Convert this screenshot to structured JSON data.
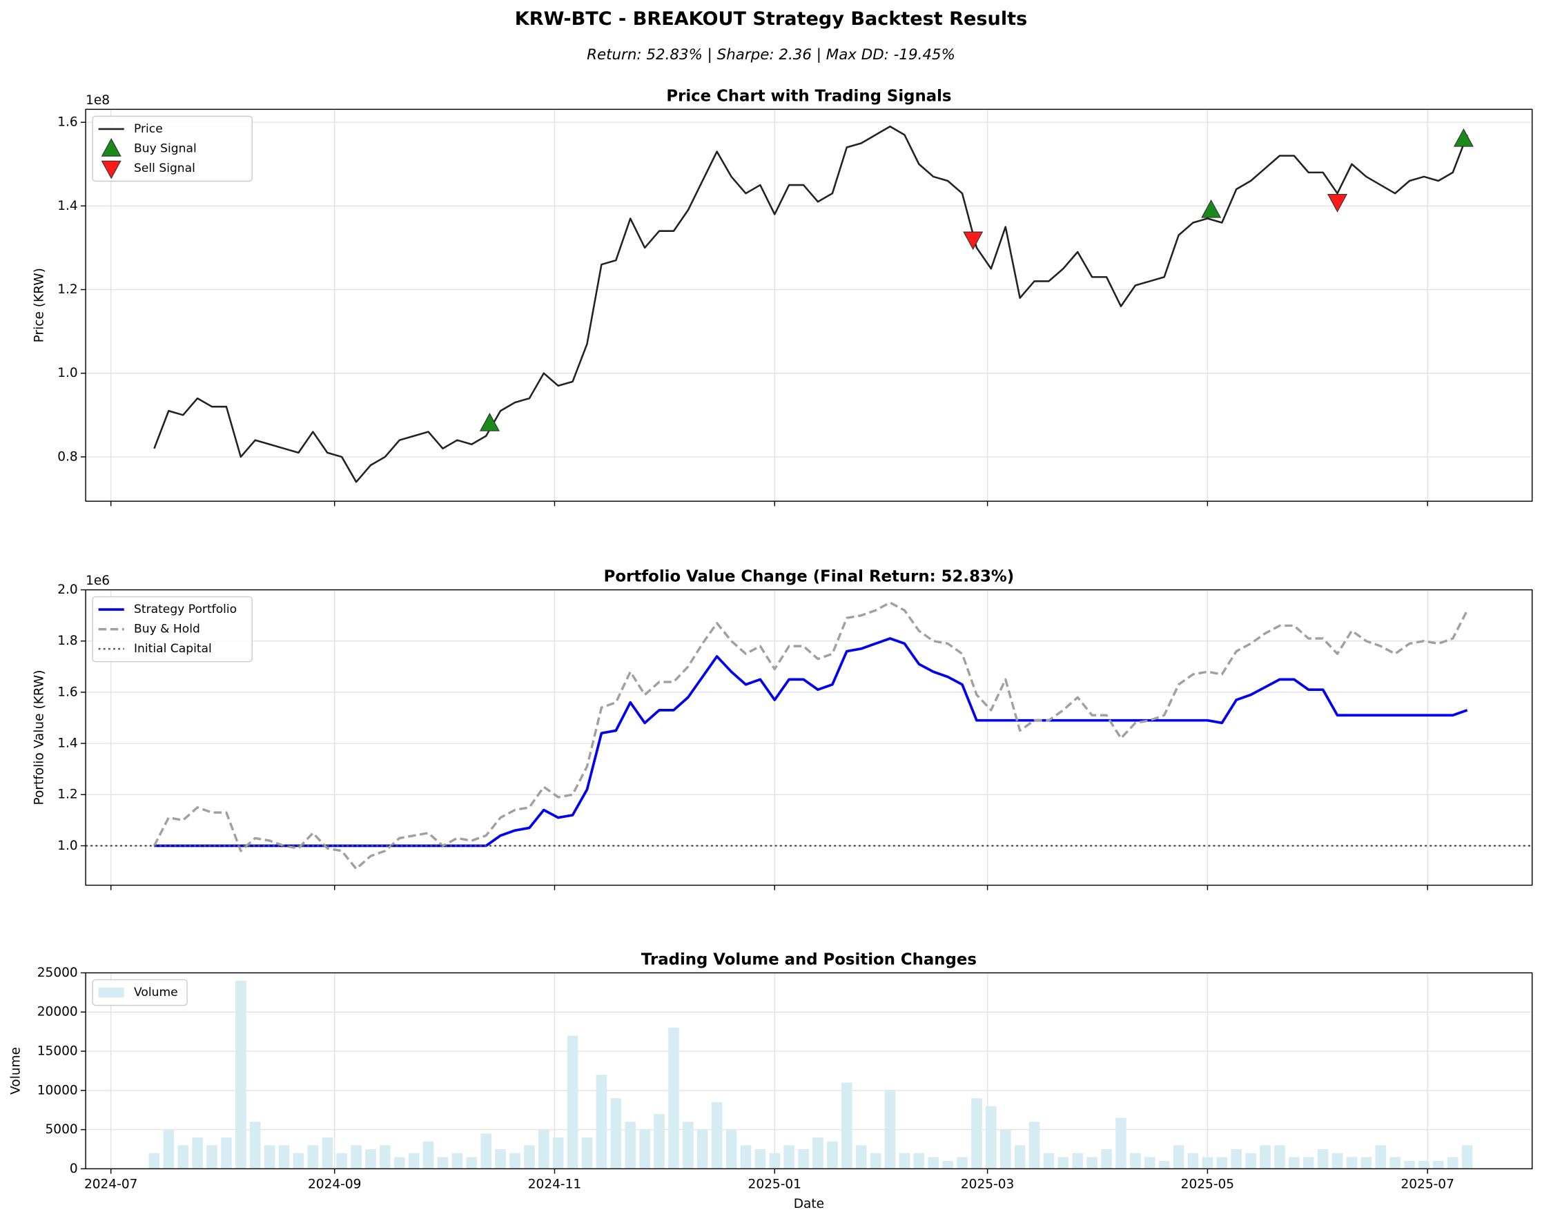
{
  "title": "KRW-BTC - BREAKOUT Strategy Backtest Results",
  "subtitle": "Return: 52.83% | Sharpe: 2.36 | Max DD: -19.45%",
  "chart_data": [
    {
      "type": "line",
      "title": "Price Chart with Trading Signals",
      "y_label": "Price (KRW)",
      "y_offset": "1e8",
      "x": [
        12,
        16,
        20,
        24,
        28,
        32,
        36,
        40,
        44,
        48,
        52,
        56,
        60,
        64,
        68,
        72,
        76,
        80,
        84,
        88,
        92,
        96,
        100,
        104,
        108,
        112,
        116,
        120,
        124,
        128,
        132,
        136,
        140,
        144,
        148,
        152,
        156,
        160,
        164,
        168,
        172,
        176,
        180,
        184,
        188,
        192,
        196,
        200,
        204,
        208,
        212,
        216,
        220,
        224,
        228,
        232,
        236,
        240,
        244,
        248,
        252,
        256,
        260,
        264,
        268,
        272,
        276,
        280,
        284,
        288,
        292,
        296,
        300,
        304,
        308,
        312,
        316,
        320,
        324,
        328,
        332,
        336,
        340,
        344,
        348,
        352,
        356,
        360,
        364,
        368,
        372,
        376
      ],
      "series": [
        {
          "name": "Price",
          "color": "#222222",
          "linestyle": "solid",
          "values": [
            0.82,
            0.91,
            0.9,
            0.94,
            0.92,
            0.92,
            0.8,
            0.84,
            0.83,
            0.82,
            0.81,
            0.86,
            0.81,
            0.8,
            0.74,
            0.78,
            0.8,
            0.84,
            0.85,
            0.86,
            0.82,
            0.84,
            0.83,
            0.85,
            0.91,
            0.93,
            0.94,
            1.0,
            0.97,
            0.98,
            1.07,
            1.26,
            1.27,
            1.37,
            1.3,
            1.34,
            1.34,
            1.39,
            1.46,
            1.53,
            1.47,
            1.43,
            1.45,
            1.38,
            1.45,
            1.45,
            1.41,
            1.43,
            1.54,
            1.55,
            1.57,
            1.59,
            1.57,
            1.5,
            1.47,
            1.46,
            1.43,
            1.3,
            1.25,
            1.35,
            1.18,
            1.22,
            1.22,
            1.25,
            1.29,
            1.23,
            1.23,
            1.16,
            1.21,
            1.22,
            1.23,
            1.33,
            1.36,
            1.37,
            1.36,
            1.44,
            1.46,
            1.49,
            1.52,
            1.52,
            1.48,
            1.48,
            1.43,
            1.5,
            1.47,
            1.45,
            1.43,
            1.46,
            1.47,
            1.46,
            1.48,
            1.57
          ]
        },
        {
          "name": "Buy Signal",
          "color": "#1a8a1a",
          "marker": "up",
          "x": [
            105,
            305,
            375
          ],
          "values": [
            0.88,
            1.39,
            1.56
          ]
        },
        {
          "name": "Sell Signal",
          "color": "#ff1a1a",
          "marker": "down",
          "x": [
            239,
            340
          ],
          "values": [
            1.32,
            1.41
          ]
        }
      ],
      "xlim": [
        -7,
        394
      ],
      "xticks": [
        0,
        62,
        123,
        184,
        243,
        304,
        365
      ],
      "ylim": [
        0.694,
        1.631
      ],
      "yticks": [
        0.8,
        {
          "value": 1,
          "label": "1.0"
        },
        1.2,
        1.4,
        1.6
      ],
      "grid": true,
      "legend": "upper left"
    },
    {
      "type": "line",
      "title": "Portfolio Value Change (Final Return: 52.83%)",
      "y_label": "Portfolio Value (KRW)",
      "y_offset": "1e6",
      "x": [
        12,
        16,
        20,
        24,
        28,
        32,
        36,
        40,
        44,
        48,
        52,
        56,
        60,
        64,
        68,
        72,
        76,
        80,
        84,
        88,
        92,
        96,
        100,
        104,
        108,
        112,
        116,
        120,
        124,
        128,
        132,
        136,
        140,
        144,
        148,
        152,
        156,
        160,
        164,
        168,
        172,
        176,
        180,
        184,
        188,
        192,
        196,
        200,
        204,
        208,
        212,
        216,
        220,
        224,
        228,
        232,
        236,
        240,
        244,
        248,
        252,
        256,
        260,
        264,
        268,
        272,
        276,
        280,
        284,
        288,
        292,
        296,
        300,
        304,
        308,
        312,
        316,
        320,
        324,
        328,
        332,
        336,
        340,
        344,
        348,
        352,
        356,
        360,
        364,
        368,
        372,
        376
      ],
      "series": [
        {
          "name": "Strategy Portfolio",
          "color": "#0000ee",
          "linestyle": "solid",
          "width": 2.6,
          "values": [
            1.0,
            1.0,
            1.0,
            1.0,
            1.0,
            1.0,
            1.0,
            1.0,
            1.0,
            1.0,
            1.0,
            1.0,
            1.0,
            1.0,
            1.0,
            1.0,
            1.0,
            1.0,
            1.0,
            1.0,
            1.0,
            1.0,
            1.0,
            1.0,
            1.04,
            1.06,
            1.07,
            1.14,
            1.11,
            1.12,
            1.22,
            1.44,
            1.45,
            1.56,
            1.48,
            1.53,
            1.53,
            1.58,
            1.66,
            1.74,
            1.68,
            1.63,
            1.65,
            1.57,
            1.65,
            1.65,
            1.61,
            1.63,
            1.76,
            1.77,
            1.79,
            1.81,
            1.79,
            1.71,
            1.68,
            1.66,
            1.63,
            1.49,
            1.49,
            1.49,
            1.49,
            1.49,
            1.49,
            1.49,
            1.49,
            1.49,
            1.49,
            1.49,
            1.49,
            1.49,
            1.49,
            1.49,
            1.49,
            1.49,
            1.48,
            1.57,
            1.59,
            1.62,
            1.65,
            1.65,
            1.61,
            1.61,
            1.51,
            1.51,
            1.51,
            1.51,
            1.51,
            1.51,
            1.51,
            1.51,
            1.51,
            1.53
          ]
        },
        {
          "name": "Buy & Hold",
          "color": "#a0a0a0",
          "linestyle": "dashed",
          "width": 2.4,
          "values": [
            1.0,
            1.11,
            1.1,
            1.15,
            1.13,
            1.13,
            0.98,
            1.03,
            1.02,
            1.0,
            0.99,
            1.05,
            0.99,
            0.98,
            0.91,
            0.96,
            0.98,
            1.03,
            1.04,
            1.05,
            1.0,
            1.03,
            1.02,
            1.04,
            1.11,
            1.14,
            1.15,
            1.23,
            1.19,
            1.2,
            1.31,
            1.54,
            1.56,
            1.68,
            1.59,
            1.64,
            1.64,
            1.7,
            1.79,
            1.87,
            1.8,
            1.75,
            1.78,
            1.69,
            1.78,
            1.78,
            1.73,
            1.75,
            1.89,
            1.9,
            1.92,
            1.95,
            1.92,
            1.84,
            1.8,
            1.79,
            1.75,
            1.59,
            1.53,
            1.65,
            1.45,
            1.49,
            1.49,
            1.53,
            1.58,
            1.51,
            1.51,
            1.42,
            1.48,
            1.49,
            1.51,
            1.63,
            1.67,
            1.68,
            1.67,
            1.76,
            1.79,
            1.83,
            1.86,
            1.86,
            1.81,
            1.81,
            1.75,
            1.84,
            1.8,
            1.78,
            1.75,
            1.79,
            1.8,
            1.79,
            1.81,
            1.92
          ]
        },
        {
          "name": "Initial Capital",
          "color": "#555555",
          "linestyle": "dotted",
          "width": 1.8,
          "hline": 1
        }
      ],
      "xlim": [
        -7,
        394
      ],
      "xticks": [
        0,
        62,
        123,
        184,
        243,
        304,
        365
      ],
      "ylim": [
        0.846,
        2.0
      ],
      "yticks": [
        {
          "value": 1,
          "label": "1.0"
        },
        1.2,
        1.4,
        1.6,
        1.8,
        {
          "value": 2,
          "label": "2.0"
        }
      ],
      "grid": true,
      "legend": "upper left"
    },
    {
      "type": "bar",
      "title": "Trading Volume and Position Changes",
      "x_label": "Date",
      "y_label": "Volume",
      "x": [
        12,
        16,
        20,
        24,
        28,
        32,
        36,
        40,
        44,
        48,
        52,
        56,
        60,
        64,
        68,
        72,
        76,
        80,
        84,
        88,
        92,
        96,
        100,
        104,
        108,
        112,
        116,
        120,
        124,
        128,
        132,
        136,
        140,
        144,
        148,
        152,
        156,
        160,
        164,
        168,
        172,
        176,
        180,
        184,
        188,
        192,
        196,
        200,
        204,
        208,
        212,
        216,
        220,
        224,
        228,
        232,
        236,
        240,
        244,
        248,
        252,
        256,
        260,
        264,
        268,
        272,
        276,
        280,
        284,
        288,
        292,
        296,
        300,
        304,
        308,
        312,
        316,
        320,
        324,
        328,
        332,
        336,
        340,
        344,
        348,
        352,
        356,
        360,
        364,
        368,
        372,
        376
      ],
      "series": [
        {
          "name": "Volume",
          "color": "#d6ecf3",
          "values": [
            2000,
            5000,
            3000,
            4000,
            3000,
            4000,
            24000,
            6000,
            3000,
            3000,
            2000,
            3000,
            4000,
            2000,
            3000,
            2500,
            3000,
            1500,
            2000,
            3500,
            1500,
            2000,
            1500,
            4500,
            2500,
            2000,
            3000,
            5000,
            4000,
            17000,
            4000,
            12000,
            9000,
            6000,
            5000,
            7000,
            18000,
            6000,
            5000,
            8500,
            5000,
            3000,
            2500,
            2000,
            3000,
            2500,
            4000,
            3500,
            11000,
            3000,
            2000,
            10000,
            2000,
            2000,
            1500,
            1000,
            1500,
            9000,
            8000,
            5000,
            3000,
            6000,
            2000,
            1500,
            2000,
            1500,
            2500,
            6500,
            2000,
            1500,
            1000,
            3000,
            2000,
            1500,
            1500,
            2500,
            2000,
            3000,
            3000,
            1500,
            1500,
            2500,
            2000,
            1500,
            1500,
            3000,
            1500,
            1000,
            1000,
            1000,
            1500,
            3000
          ]
        }
      ],
      "xlim": [
        -7,
        394
      ],
      "xticks": [
        {
          "value": 0,
          "label": "2024-07"
        },
        {
          "value": 62,
          "label": "2024-09"
        },
        {
          "value": 123,
          "label": "2024-11"
        },
        {
          "value": 184,
          "label": "2025-01"
        },
        {
          "value": 243,
          "label": "2025-03"
        },
        {
          "value": 304,
          "label": "2025-05"
        },
        {
          "value": 365,
          "label": "2025-07"
        }
      ],
      "ylim": [
        0,
        25000
      ],
      "yticks": [
        0,
        5000,
        10000,
        15000,
        20000,
        25000
      ],
      "grid": true,
      "legend": "upper left"
    }
  ]
}
